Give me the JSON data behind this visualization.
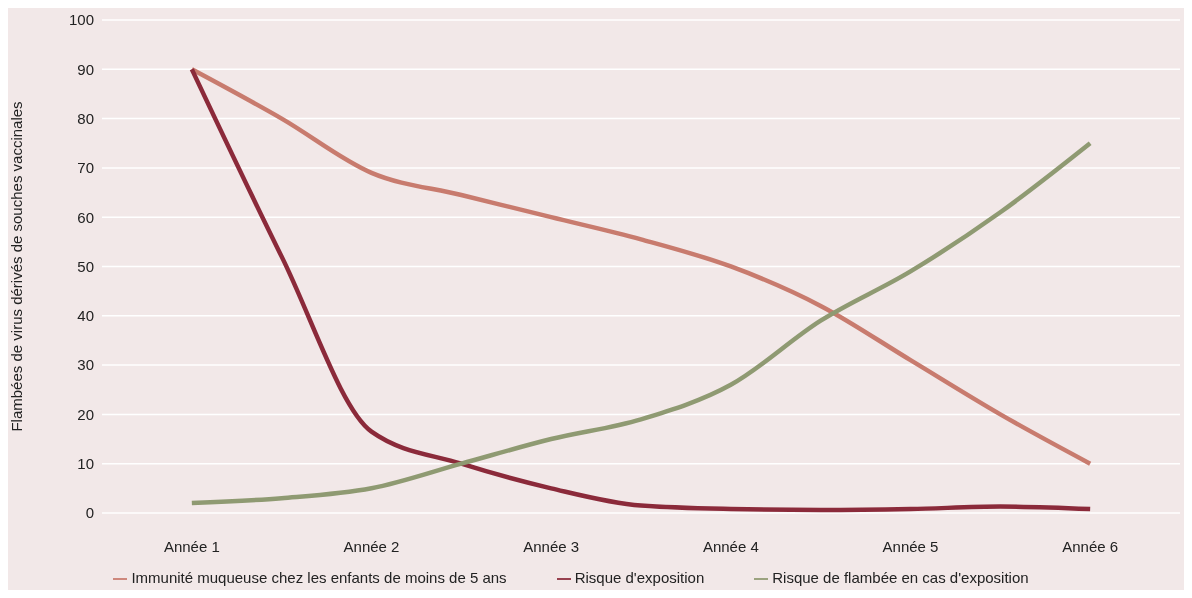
{
  "chart_data": {
    "type": "line",
    "ylabel": "Flambées de virus dérivés de souches vaccinales",
    "categories": [
      "Année 1",
      null,
      "Année 2",
      null,
      "Année 3",
      null,
      "Année 4",
      null,
      "Année 5",
      null,
      "Année 6"
    ],
    "ylim": [
      0,
      100
    ],
    "yticks": [
      0,
      10,
      20,
      30,
      40,
      50,
      60,
      70,
      80,
      90,
      100
    ],
    "grid": "y",
    "legend": "bottom",
    "marker": "none",
    "line_style": "solid",
    "series": [
      {
        "name": "Immunité muqueuse chez les enfants de moins de 5 ans",
        "color": "#c87b6e",
        "values": [
          90,
          80,
          69,
          64.5,
          60,
          55.5,
          50,
          42,
          31,
          20,
          10
        ]
      },
      {
        "name": "Risque d'exposition",
        "color": "#8b2a3a",
        "values": [
          90,
          52,
          16.5,
          10,
          5,
          1.5,
          0.8,
          0.6,
          0.8,
          1.3,
          0.8
        ]
      },
      {
        "name": "Risque de flambée en cas d'exposition",
        "color": "#8f9a72",
        "values": [
          2,
          3,
          5,
          10,
          15,
          19,
          26,
          39,
          49,
          61,
          75
        ]
      }
    ]
  }
}
